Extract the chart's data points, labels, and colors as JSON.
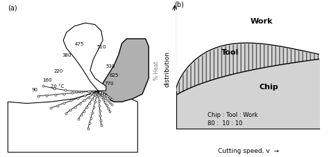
{
  "fig_width": 4.74,
  "fig_height": 2.28,
  "dpi": 100,
  "panel_a_label": "(a)",
  "panel_b_label": "(b)",
  "ylabel_a": "% Heat",
  "ylabel_b": "distribution",
  "xlabel_b": "Cutting speed, v",
  "region_labels": [
    "Work",
    "Tool",
    "Chip"
  ],
  "annotation_line1": "Chip : Tool : Work",
  "annotation_line2": "80 :  10 : 10",
  "temp_labels": [
    "90",
    "160",
    "220",
    "380",
    "475",
    "510",
    "530",
    "625",
    "770",
    "20 °C"
  ],
  "chip_fill_color": "#d3d3d3",
  "tool_fill_color": "#d8d8d8",
  "work_color": "#ffffff",
  "tool_gray": "#b0b0b0",
  "hatch_pattern": "|||"
}
